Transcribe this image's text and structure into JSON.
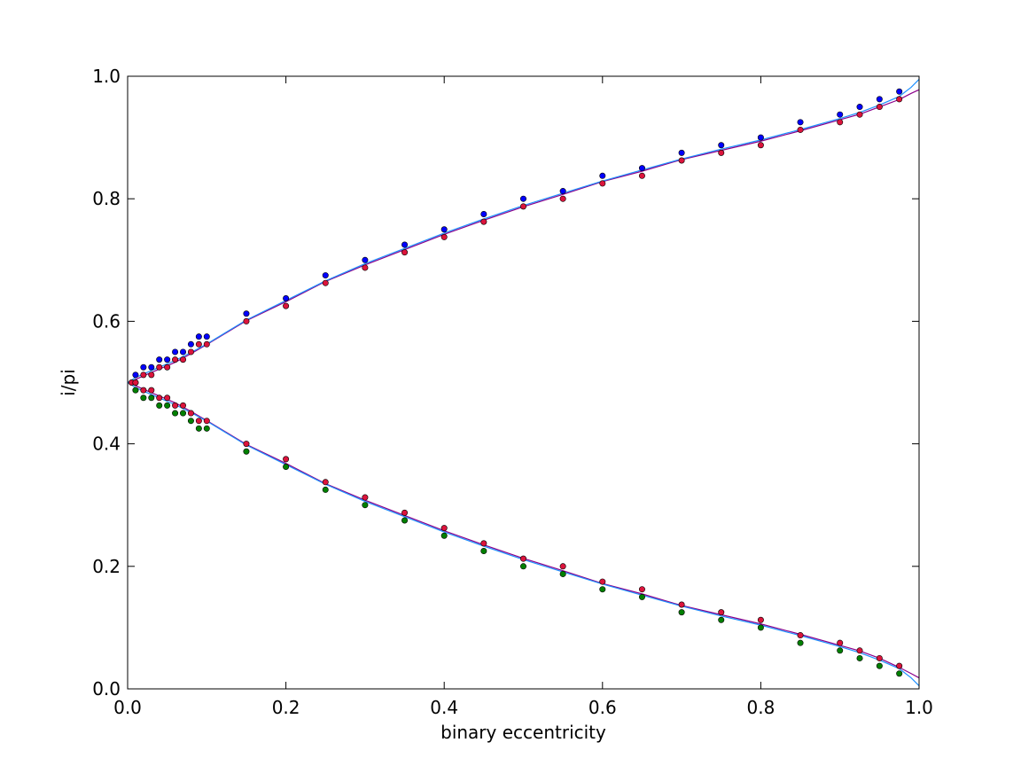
{
  "chart_data": {
    "type": "scatter",
    "xlabel": "binary eccentricity",
    "ylabel": "i/pi",
    "xlim": [
      0.0,
      1.0
    ],
    "ylim": [
      0.0,
      1.0
    ],
    "xticks": [
      "0.0",
      "0.2",
      "0.4",
      "0.6",
      "0.8",
      "1.0"
    ],
    "yticks": [
      "0.0",
      "0.2",
      "0.4",
      "0.6",
      "0.8",
      "1.0"
    ],
    "xtick_values": [
      0.0,
      0.2,
      0.4,
      0.6,
      0.8,
      1.0
    ],
    "ytick_values": [
      0.0,
      0.2,
      0.4,
      0.6,
      0.8,
      1.0
    ],
    "grid": false,
    "legend": "none",
    "series": [
      {
        "color": "#0000ff",
        "marker": "circle",
        "points": [
          [
            0.01,
            0.5125
          ],
          [
            0.02,
            0.525
          ],
          [
            0.03,
            0.525
          ],
          [
            0.04,
            0.5375
          ],
          [
            0.05,
            0.5375
          ],
          [
            0.06,
            0.55
          ],
          [
            0.07,
            0.55
          ],
          [
            0.08,
            0.5625
          ],
          [
            0.09,
            0.575
          ],
          [
            0.1,
            0.575
          ],
          [
            0.15,
            0.6125
          ],
          [
            0.2,
            0.6375
          ],
          [
            0.25,
            0.675
          ],
          [
            0.3,
            0.7
          ],
          [
            0.35,
            0.725
          ],
          [
            0.4,
            0.75
          ],
          [
            0.45,
            0.775
          ],
          [
            0.5,
            0.8
          ],
          [
            0.55,
            0.8125
          ],
          [
            0.6,
            0.8375
          ],
          [
            0.65,
            0.85
          ],
          [
            0.7,
            0.875
          ],
          [
            0.75,
            0.8875
          ],
          [
            0.8,
            0.9
          ],
          [
            0.85,
            0.925
          ],
          [
            0.9,
            0.9375
          ],
          [
            0.925,
            0.95
          ],
          [
            0.95,
            0.9625
          ],
          [
            0.975,
            0.975
          ]
        ]
      },
      {
        "color": "#dc143c",
        "marker": "circle",
        "points": [
          [
            0.005,
            0.5
          ],
          [
            0.01,
            0.5
          ],
          [
            0.02,
            0.5125
          ],
          [
            0.03,
            0.5125
          ],
          [
            0.04,
            0.525
          ],
          [
            0.05,
            0.525
          ],
          [
            0.06,
            0.5375
          ],
          [
            0.07,
            0.5375
          ],
          [
            0.08,
            0.55
          ],
          [
            0.09,
            0.5625
          ],
          [
            0.1,
            0.5625
          ],
          [
            0.15,
            0.6
          ],
          [
            0.2,
            0.625
          ],
          [
            0.25,
            0.6625
          ],
          [
            0.3,
            0.6875
          ],
          [
            0.35,
            0.7125
          ],
          [
            0.4,
            0.7375
          ],
          [
            0.45,
            0.7625
          ],
          [
            0.5,
            0.7875
          ],
          [
            0.55,
            0.8
          ],
          [
            0.6,
            0.825
          ],
          [
            0.65,
            0.8375
          ],
          [
            0.7,
            0.8625
          ],
          [
            0.75,
            0.875
          ],
          [
            0.8,
            0.8875
          ],
          [
            0.85,
            0.9125
          ],
          [
            0.9,
            0.925
          ],
          [
            0.925,
            0.9375
          ],
          [
            0.95,
            0.95
          ],
          [
            0.975,
            0.9625
          ],
          [
            0.01,
            0.5
          ],
          [
            0.02,
            0.4875
          ],
          [
            0.03,
            0.4875
          ],
          [
            0.04,
            0.475
          ],
          [
            0.05,
            0.475
          ],
          [
            0.06,
            0.4625
          ],
          [
            0.07,
            0.4625
          ],
          [
            0.08,
            0.45
          ],
          [
            0.09,
            0.4375
          ],
          [
            0.1,
            0.4375
          ],
          [
            0.15,
            0.4
          ],
          [
            0.2,
            0.375
          ],
          [
            0.25,
            0.3375
          ],
          [
            0.3,
            0.3125
          ],
          [
            0.35,
            0.2875
          ],
          [
            0.4,
            0.2625
          ],
          [
            0.45,
            0.2375
          ],
          [
            0.5,
            0.2125
          ],
          [
            0.55,
            0.2
          ],
          [
            0.6,
            0.175
          ],
          [
            0.65,
            0.1625
          ],
          [
            0.7,
            0.1375
          ],
          [
            0.75,
            0.125
          ],
          [
            0.8,
            0.1125
          ],
          [
            0.85,
            0.0875
          ],
          [
            0.9,
            0.075
          ],
          [
            0.925,
            0.0625
          ],
          [
            0.95,
            0.05
          ],
          [
            0.975,
            0.0375
          ]
        ]
      },
      {
        "color": "#008000",
        "marker": "circle",
        "points": [
          [
            0.01,
            0.4875
          ],
          [
            0.02,
            0.475
          ],
          [
            0.03,
            0.475
          ],
          [
            0.04,
            0.4625
          ],
          [
            0.05,
            0.4625
          ],
          [
            0.06,
            0.45
          ],
          [
            0.07,
            0.45
          ],
          [
            0.08,
            0.4375
          ],
          [
            0.09,
            0.425
          ],
          [
            0.1,
            0.425
          ],
          [
            0.15,
            0.3875
          ],
          [
            0.2,
            0.3625
          ],
          [
            0.25,
            0.325
          ],
          [
            0.3,
            0.3
          ],
          [
            0.35,
            0.275
          ],
          [
            0.4,
            0.25
          ],
          [
            0.45,
            0.225
          ],
          [
            0.5,
            0.2
          ],
          [
            0.55,
            0.1875
          ],
          [
            0.6,
            0.1625
          ],
          [
            0.65,
            0.15
          ],
          [
            0.7,
            0.125
          ],
          [
            0.75,
            0.1125
          ],
          [
            0.8,
            0.1
          ],
          [
            0.85,
            0.075
          ],
          [
            0.9,
            0.0625
          ],
          [
            0.925,
            0.05
          ],
          [
            0.95,
            0.0375
          ],
          [
            0.975,
            0.025
          ]
        ]
      }
    ],
    "curves": [
      {
        "type": "line",
        "color": "#8b008b",
        "points": [
          [
            0.0,
            0.5
          ],
          [
            0.005,
            0.5
          ],
          [
            0.01,
            0.505
          ],
          [
            0.02,
            0.511
          ],
          [
            0.04,
            0.522
          ],
          [
            0.06,
            0.533
          ],
          [
            0.08,
            0.547
          ],
          [
            0.1,
            0.562
          ],
          [
            0.15,
            0.601
          ],
          [
            0.2,
            0.632
          ],
          [
            0.25,
            0.665
          ],
          [
            0.3,
            0.692
          ],
          [
            0.35,
            0.717
          ],
          [
            0.4,
            0.742
          ],
          [
            0.45,
            0.765
          ],
          [
            0.5,
            0.787
          ],
          [
            0.55,
            0.807
          ],
          [
            0.6,
            0.828
          ],
          [
            0.65,
            0.845
          ],
          [
            0.7,
            0.864
          ],
          [
            0.75,
            0.879
          ],
          [
            0.8,
            0.894
          ],
          [
            0.85,
            0.911
          ],
          [
            0.9,
            0.929
          ],
          [
            0.925,
            0.938
          ],
          [
            0.95,
            0.95
          ],
          [
            0.975,
            0.962
          ],
          [
            0.99,
            0.972
          ],
          [
            1.0,
            0.978
          ]
        ]
      },
      {
        "type": "line",
        "color": "#8b008b",
        "points": [
          [
            0.0,
            0.5
          ],
          [
            0.005,
            0.5
          ],
          [
            0.01,
            0.495
          ],
          [
            0.02,
            0.489
          ],
          [
            0.04,
            0.478
          ],
          [
            0.06,
            0.467
          ],
          [
            0.08,
            0.453
          ],
          [
            0.1,
            0.438
          ],
          [
            0.15,
            0.399
          ],
          [
            0.2,
            0.368
          ],
          [
            0.25,
            0.335
          ],
          [
            0.3,
            0.308
          ],
          [
            0.35,
            0.283
          ],
          [
            0.4,
            0.258
          ],
          [
            0.45,
            0.235
          ],
          [
            0.5,
            0.213
          ],
          [
            0.55,
            0.193
          ],
          [
            0.6,
            0.172
          ],
          [
            0.65,
            0.155
          ],
          [
            0.7,
            0.136
          ],
          [
            0.75,
            0.121
          ],
          [
            0.8,
            0.106
          ],
          [
            0.85,
            0.089
          ],
          [
            0.9,
            0.071
          ],
          [
            0.925,
            0.062
          ],
          [
            0.95,
            0.05
          ],
          [
            0.975,
            0.035
          ],
          [
            0.99,
            0.025
          ],
          [
            1.0,
            0.018
          ]
        ]
      },
      {
        "type": "line",
        "color": "#1e90ff",
        "points": [
          [
            0.0,
            0.5
          ],
          [
            0.01,
            0.508
          ],
          [
            0.02,
            0.514
          ],
          [
            0.04,
            0.525
          ],
          [
            0.06,
            0.536
          ],
          [
            0.08,
            0.549
          ],
          [
            0.1,
            0.563
          ],
          [
            0.15,
            0.602
          ],
          [
            0.2,
            0.634
          ],
          [
            0.25,
            0.666
          ],
          [
            0.3,
            0.694
          ],
          [
            0.35,
            0.719
          ],
          [
            0.4,
            0.744
          ],
          [
            0.45,
            0.767
          ],
          [
            0.5,
            0.789
          ],
          [
            0.55,
            0.809
          ],
          [
            0.6,
            0.829
          ],
          [
            0.65,
            0.847
          ],
          [
            0.7,
            0.865
          ],
          [
            0.75,
            0.881
          ],
          [
            0.8,
            0.896
          ],
          [
            0.85,
            0.913
          ],
          [
            0.9,
            0.931
          ],
          [
            0.925,
            0.941
          ],
          [
            0.95,
            0.953
          ],
          [
            0.975,
            0.967
          ],
          [
            0.99,
            0.982
          ],
          [
            1.0,
            0.995
          ]
        ]
      },
      {
        "type": "line",
        "color": "#1e90ff",
        "points": [
          [
            0.0,
            0.5
          ],
          [
            0.01,
            0.492
          ],
          [
            0.02,
            0.486
          ],
          [
            0.04,
            0.475
          ],
          [
            0.06,
            0.464
          ],
          [
            0.08,
            0.451
          ],
          [
            0.1,
            0.437
          ],
          [
            0.15,
            0.398
          ],
          [
            0.2,
            0.366
          ],
          [
            0.25,
            0.334
          ],
          [
            0.3,
            0.306
          ],
          [
            0.35,
            0.281
          ],
          [
            0.4,
            0.256
          ],
          [
            0.45,
            0.233
          ],
          [
            0.5,
            0.211
          ],
          [
            0.55,
            0.191
          ],
          [
            0.6,
            0.171
          ],
          [
            0.65,
            0.153
          ],
          [
            0.7,
            0.135
          ],
          [
            0.75,
            0.119
          ],
          [
            0.8,
            0.104
          ],
          [
            0.85,
            0.087
          ],
          [
            0.9,
            0.069
          ],
          [
            0.925,
            0.059
          ],
          [
            0.95,
            0.047
          ],
          [
            0.975,
            0.033
          ],
          [
            0.99,
            0.018
          ],
          [
            1.0,
            0.005
          ]
        ]
      }
    ]
  }
}
